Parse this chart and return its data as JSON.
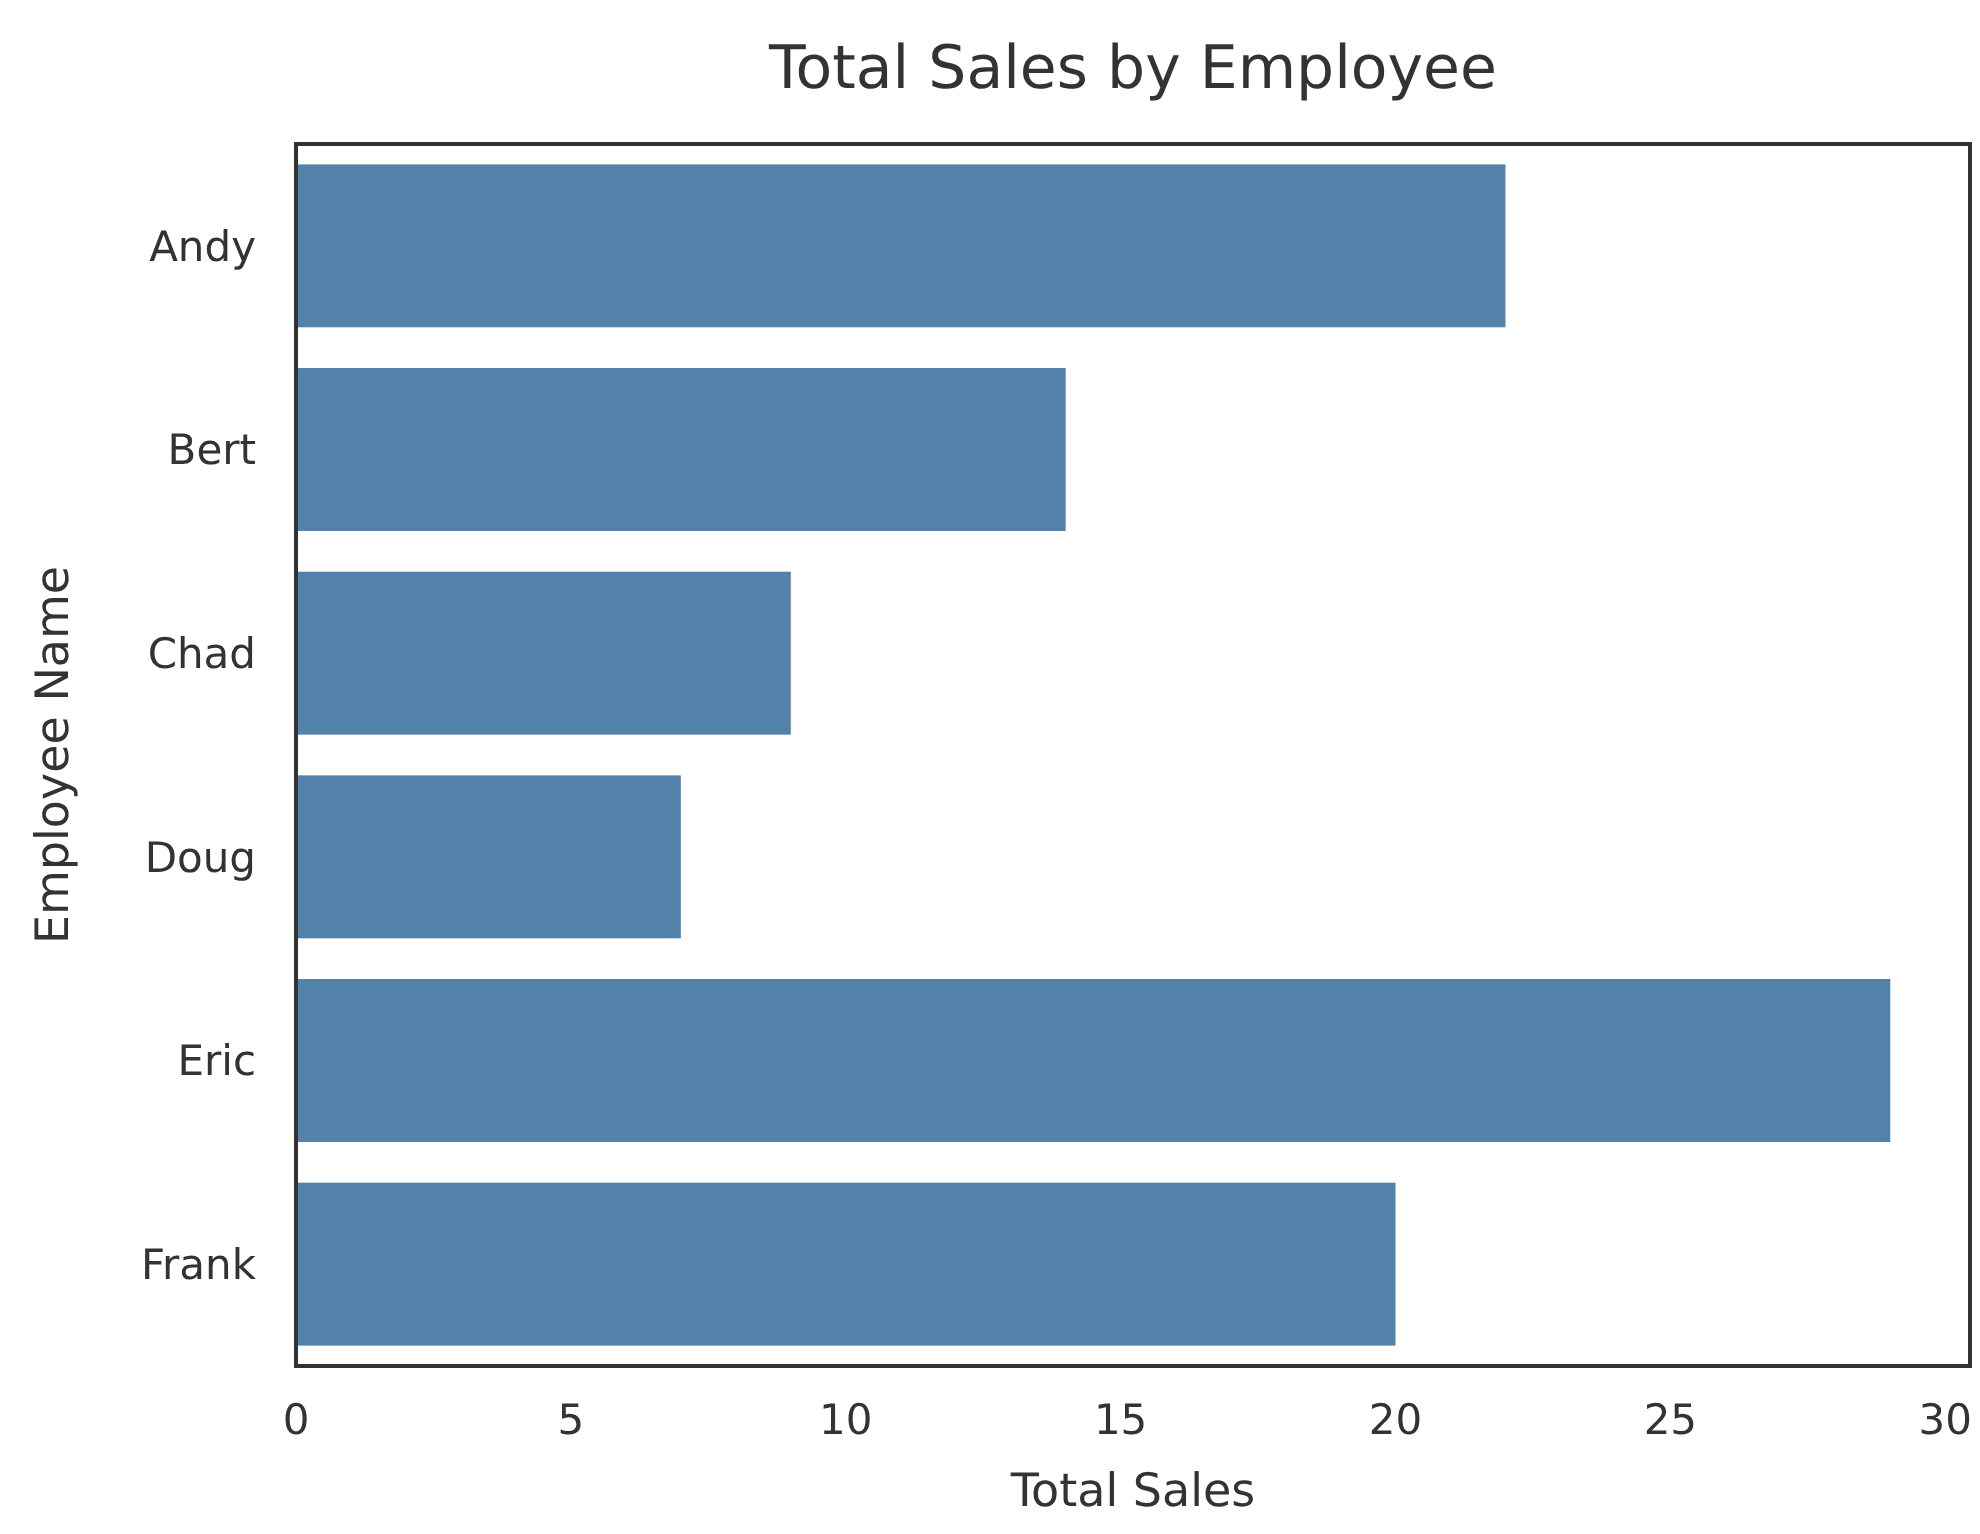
{
  "chart_data": {
    "type": "bar",
    "orientation": "horizontal",
    "title": "Total Sales by Employee",
    "xlabel": "Total Sales",
    "ylabel": "Employee Name",
    "categories": [
      "Andy",
      "Bert",
      "Chad",
      "Doug",
      "Eric",
      "Frank"
    ],
    "values": [
      22,
      14,
      9,
      7,
      29,
      20
    ],
    "color": "#5282aa",
    "xlim": [
      0,
      30.45
    ],
    "xticks": [
      0,
      5,
      10,
      15,
      20,
      25,
      30
    ]
  }
}
